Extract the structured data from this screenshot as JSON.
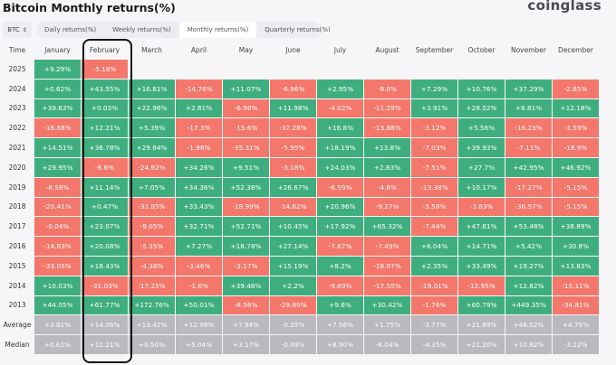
{
  "header": {
    "title": "Bitcoin Monthly returns(%)",
    "logo": "coinglass"
  },
  "asset_select": {
    "value": "BTC",
    "icon": "updown-chevron-icon"
  },
  "tabs": [
    {
      "label": "Daily returns(%)",
      "active": false
    },
    {
      "label": "Weekly returns(%)",
      "active": false
    },
    {
      "label": "Monthly returns(%)",
      "active": true
    },
    {
      "label": "Quarterly returns(%)",
      "active": false
    }
  ],
  "colors": {
    "positive": "#3fae7f",
    "negative": "#f4776b",
    "summary": "#b9b9be",
    "highlight_border": "#111111"
  },
  "highlighted_column": "February",
  "table": {
    "time_header": "Time",
    "months": [
      "January",
      "February",
      "March",
      "April",
      "May",
      "June",
      "July",
      "August",
      "September",
      "October",
      "November",
      "December"
    ],
    "rows": [
      {
        "label": "2025",
        "values": [
          "+9.29%",
          "-5.18%",
          "",
          "",
          "",
          "",
          "",
          "",
          "",
          "",
          "",
          ""
        ]
      },
      {
        "label": "2024",
        "values": [
          "+0.62%",
          "+43.55%",
          "+16.81%",
          "-14.76%",
          "+11.07%",
          "-6.96%",
          "+2.95%",
          "-8.6%",
          "+7.29%",
          "+10.76%",
          "+37.29%",
          "-2.85%"
        ]
      },
      {
        "label": "2023",
        "values": [
          "+39.63%",
          "+0.03%",
          "+22.96%",
          "+2.81%",
          "-6.98%",
          "+11.98%",
          "-4.02%",
          "-11.29%",
          "+3.91%",
          "+28.52%",
          "+8.81%",
          "+12.18%"
        ]
      },
      {
        "label": "2022",
        "values": [
          "-16.68%",
          "+12.21%",
          "+5.39%",
          "-17.3%",
          "-15.6%",
          "-37.28%",
          "+16.8%",
          "-13.88%",
          "-3.12%",
          "+5.56%",
          "-16.23%",
          "-3.59%"
        ]
      },
      {
        "label": "2021",
        "values": [
          "+14.51%",
          "+36.78%",
          "+29.84%",
          "-1.98%",
          "-35.31%",
          "-5.95%",
          "+18.19%",
          "+13.8%",
          "-7.03%",
          "+39.93%",
          "-7.11%",
          "-18.9%"
        ]
      },
      {
        "label": "2020",
        "values": [
          "+29.95%",
          "-8.6%",
          "-24.92%",
          "+34.26%",
          "+9.51%",
          "-3.18%",
          "+24.03%",
          "+2.83%",
          "-7.51%",
          "+27.7%",
          "+42.95%",
          "+46.92%"
        ]
      },
      {
        "label": "2019",
        "values": [
          "-8.58%",
          "+11.14%",
          "+7.05%",
          "+34.36%",
          "+52.38%",
          "+26.67%",
          "-6.59%",
          "-4.6%",
          "-13.38%",
          "+10.17%",
          "-17.27%",
          "-5.15%"
        ]
      },
      {
        "label": "2018",
        "values": [
          "-25.41%",
          "+0.47%",
          "-32.85%",
          "+33.43%",
          "-18.99%",
          "-14.62%",
          "+20.96%",
          "-9.27%",
          "-5.58%",
          "-3.83%",
          "-36.57%",
          "-5.15%"
        ]
      },
      {
        "label": "2017",
        "values": [
          "-0.04%",
          "+23.07%",
          "-9.05%",
          "+32.71%",
          "+52.71%",
          "+10.45%",
          "+17.92%",
          "+65.32%",
          "-7.44%",
          "+47.81%",
          "+53.48%",
          "+38.89%"
        ]
      },
      {
        "label": "2016",
        "values": [
          "-14.83%",
          "+20.08%",
          "-5.35%",
          "+7.27%",
          "+18.78%",
          "+27.14%",
          "-7.67%",
          "-7.49%",
          "+6.04%",
          "+14.71%",
          "+5.42%",
          "+30.8%"
        ]
      },
      {
        "label": "2015",
        "values": [
          "-33.05%",
          "+18.43%",
          "-4.38%",
          "-3.46%",
          "-3.17%",
          "+15.19%",
          "+8.2%",
          "-18.67%",
          "+2.35%",
          "+33.49%",
          "+19.27%",
          "+13.83%"
        ]
      },
      {
        "label": "2014",
        "values": [
          "+10.03%",
          "-31.03%",
          "-17.25%",
          "-1.6%",
          "+39.46%",
          "+2.2%",
          "-9.69%",
          "-17.55%",
          "-19.01%",
          "-12.95%",
          "+12.82%",
          "-15.11%"
        ]
      },
      {
        "label": "2013",
        "values": [
          "+44.05%",
          "+61.77%",
          "+172.76%",
          "+50.01%",
          "-8.56%",
          "-29.89%",
          "+9.6%",
          "+30.42%",
          "-1.76%",
          "+60.79%",
          "+449.35%",
          "-34.81%"
        ]
      },
      {
        "label": "Average",
        "summary": true,
        "values": [
          "+3.81%",
          "+14.06%",
          "+13.42%",
          "+12.98%",
          "+7.94%",
          "-0.35%",
          "+7.56%",
          "+1.75%",
          "-3.77%",
          "+21.89%",
          "+46.02%",
          "+4.75%"
        ]
      },
      {
        "label": "Median",
        "summary": true,
        "values": [
          "+0.62%",
          "+12.21%",
          "+0.50%",
          "+5.04%",
          "+3.17%",
          "-0.49%",
          "+8.90%",
          "-8.04%",
          "-4.35%",
          "+21.20%",
          "+10.82%",
          "-3.22%"
        ]
      }
    ]
  }
}
